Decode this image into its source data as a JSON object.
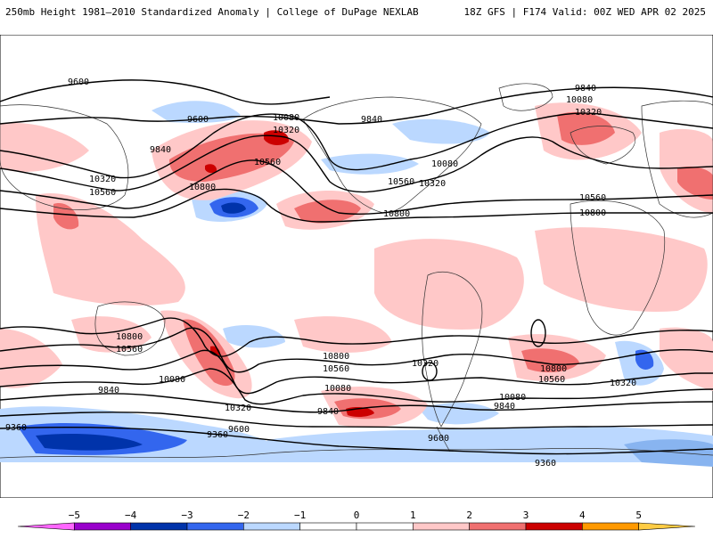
{
  "header": {
    "left": "250mb Height 1981–2010 Standardized Anomaly | College of DuPage NEXLAB",
    "right": "18Z GFS | F174 Valid: 00Z WED APR 02 2025"
  },
  "colorbar": {
    "ticks": [
      "−5",
      "−4",
      "−3",
      "−2",
      "−1",
      "0",
      "1",
      "2",
      "3",
      "4",
      "5"
    ],
    "colors": [
      "#ff66ff",
      "#9900cc",
      "#0033aa",
      "#3366ee",
      "#bbd8ff",
      "#ffffff",
      "#ffc8c8",
      "#f07070",
      "#cc0000",
      "#ff9900",
      "#ffcc44"
    ]
  },
  "contour_labels": [
    "9600",
    "9600",
    "9840",
    "10080",
    "10320",
    "10320",
    "10560",
    "10560",
    "10800",
    "9840",
    "10080",
    "10320",
    "10560",
    "10080",
    "10320",
    "10560",
    "10800",
    "9840",
    "10080",
    "10320",
    "10560",
    "10800",
    "10800",
    "10560",
    "10080",
    "9840",
    "10320",
    "10800",
    "10560",
    "10320",
    "10080",
    "9840",
    "9600",
    "9360",
    "9600",
    "10800",
    "10560",
    "10080",
    "9840",
    "10320",
    "9600",
    "9360",
    "9360"
  ]
}
